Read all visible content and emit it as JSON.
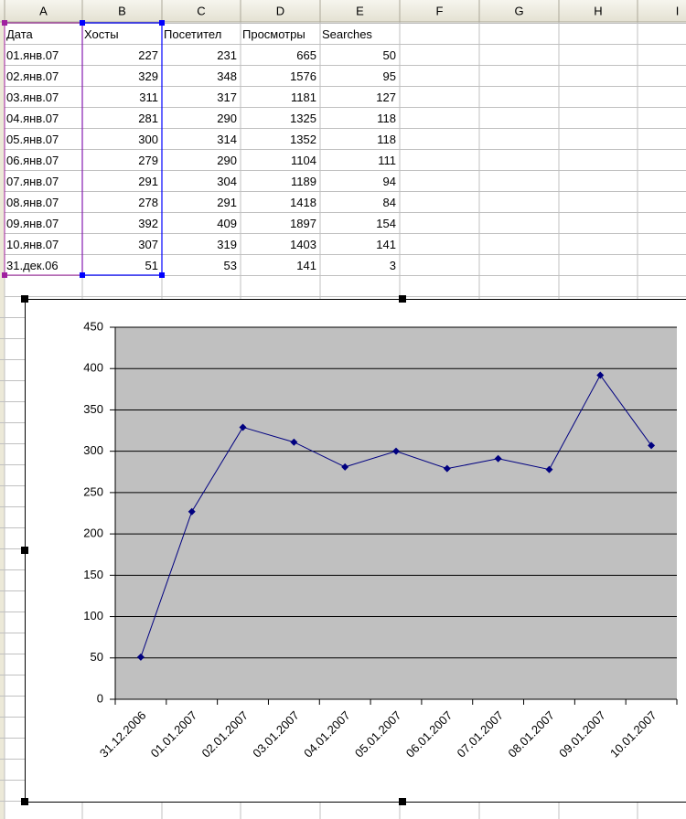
{
  "spreadsheet": {
    "columns": [
      "A",
      "B",
      "C",
      "D",
      "E",
      "F",
      "G",
      "H",
      "I"
    ],
    "rows": [
      [
        "Дата",
        "Хосты",
        "Посетител",
        "Просмотры",
        "Searches"
      ],
      [
        "01.янв.07",
        227,
        231,
        665,
        50
      ],
      [
        "02.янв.07",
        329,
        348,
        1576,
        95
      ],
      [
        "03.янв.07",
        311,
        317,
        1181,
        127
      ],
      [
        "04.янв.07",
        281,
        290,
        1325,
        118
      ],
      [
        "05.янв.07",
        300,
        314,
        1352,
        118
      ],
      [
        "06.янв.07",
        279,
        290,
        1104,
        111
      ],
      [
        "07.янв.07",
        291,
        304,
        1189,
        94
      ],
      [
        "08.янв.07",
        278,
        291,
        1418,
        84
      ],
      [
        "09.янв.07",
        392,
        409,
        1897,
        154
      ],
      [
        "10.янв.07",
        307,
        319,
        1403,
        141
      ],
      [
        "31.дек.06",
        51,
        53,
        141,
        3
      ]
    ]
  },
  "chart_data": {
    "type": "line",
    "categories": [
      "31.12.2006",
      "01.01.2007",
      "02.01.2007",
      "03.01.2007",
      "04.01.2007",
      "05.01.2007",
      "06.01.2007",
      "07.01.2007",
      "08.01.2007",
      "09.01.2007",
      "10.01.2007"
    ],
    "series": [
      {
        "name": "Хосты",
        "color": "#000080",
        "values": [
          51,
          227,
          329,
          311,
          281,
          300,
          279,
          291,
          278,
          392,
          307
        ]
      }
    ],
    "ylim": [
      0,
      450
    ],
    "yticks": [
      0,
      50,
      100,
      150,
      200,
      250,
      300,
      350,
      400,
      450
    ],
    "grid": true,
    "plot_background": "#c0c0c0",
    "legend": false
  }
}
